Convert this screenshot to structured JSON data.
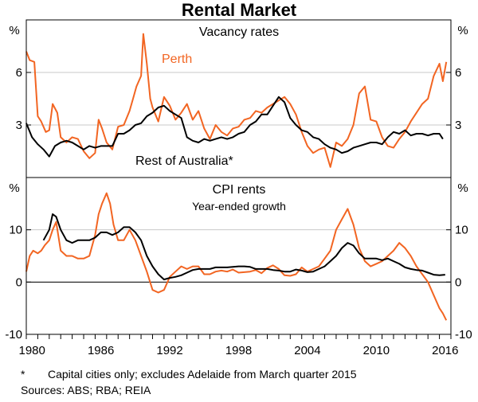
{
  "title": "Rental Market",
  "colors": {
    "perth": "#f26522",
    "rest": "#000000",
    "frame": "#000000",
    "grid": "#c8c8c8"
  },
  "x_axis": {
    "min": 1980,
    "max": 2017,
    "tick_labels": [
      "1980",
      "1986",
      "1992",
      "1998",
      "2004",
      "2010",
      "2016"
    ]
  },
  "footnote": {
    "marker": "*",
    "text": "Capital cities only; excludes Adelaide from March quarter 2015"
  },
  "sources": "Sources:   ABS; RBA; REIA",
  "chart_data": [
    {
      "type": "line",
      "title": "Vacancy rates",
      "ylabel": "%",
      "ylim": [
        0,
        9
      ],
      "y_ticks": [
        3,
        6
      ],
      "series": [
        {
          "name": "Perth",
          "label": "Perth",
          "color": "#f26522",
          "x": [
            1980,
            1980.3,
            1980.7,
            1981,
            1981.3,
            1981.7,
            1982,
            1982.3,
            1982.7,
            1983,
            1983.5,
            1984,
            1984.5,
            1985,
            1985.5,
            1986,
            1986.3,
            1986.6,
            1987,
            1987.5,
            1988,
            1988.5,
            1989,
            1989.3,
            1989.6,
            1990,
            1990.2,
            1990.5,
            1990.8,
            1991,
            1991.5,
            1992,
            1992.5,
            1993,
            1993.5,
            1994,
            1994.5,
            1995,
            1995.5,
            1996,
            1996.5,
            1997,
            1997.5,
            1998,
            1998.5,
            1999,
            1999.5,
            2000,
            2000.5,
            2001,
            2001.5,
            2002,
            2002.5,
            2003,
            2003.5,
            2004,
            2004.5,
            2005,
            2005.5,
            2006,
            2006.5,
            2007,
            2007.5,
            2008,
            2008.5,
            2009,
            2009.5,
            2010,
            2010.5,
            2011,
            2011.5,
            2012,
            2012.5,
            2013,
            2013.5,
            2014,
            2014.5,
            2015,
            2015.5,
            2016,
            2016.3,
            2016.6
          ],
          "y": [
            7.2,
            6.7,
            6.6,
            3.5,
            3.2,
            2.6,
            2.7,
            4.2,
            3.7,
            2.3,
            2.0,
            2.3,
            2.2,
            1.5,
            1.1,
            1.4,
            3.3,
            2.8,
            2.0,
            1.6,
            2.9,
            3.0,
            3.8,
            4.5,
            5.2,
            5.8,
            8.2,
            6.5,
            4.5,
            4.0,
            3.2,
            4.6,
            4.1,
            3.3,
            3.7,
            4.2,
            3.3,
            3.8,
            2.8,
            2.2,
            3.0,
            2.6,
            2.4,
            2.8,
            2.9,
            3.3,
            3.4,
            3.8,
            3.7,
            4.0,
            4.2,
            4.4,
            4.6,
            4.2,
            3.6,
            2.6,
            1.8,
            1.4,
            1.6,
            1.7,
            0.6,
            2.0,
            1.8,
            2.2,
            3.0,
            4.8,
            5.2,
            3.3,
            3.2,
            2.3,
            1.8,
            1.7,
            2.2,
            2.6,
            3.2,
            3.7,
            4.2,
            4.5,
            5.8,
            6.5,
            5.5,
            6.6
          ],
          "label_text": "Perth"
        },
        {
          "name": "Rest of Australia*",
          "label": "Rest of Australia*",
          "color": "#000000",
          "x": [
            1980,
            1980.5,
            1981,
            1981.5,
            1982,
            1982.5,
            1983,
            1983.5,
            1984,
            1984.5,
            1985,
            1985.5,
            1986,
            1986.5,
            1987,
            1987.5,
            1988,
            1988.5,
            1989,
            1989.5,
            1990,
            1990.5,
            1991,
            1991.5,
            1992,
            1992.5,
            1993,
            1993.5,
            1994,
            1994.5,
            1995,
            1995.5,
            1996,
            1996.5,
            1997,
            1997.5,
            1998,
            1998.5,
            1999,
            1999.5,
            2000,
            2000.5,
            2001,
            2001.5,
            2002,
            2002.5,
            2003,
            2003.5,
            2004,
            2004.5,
            2005,
            2005.5,
            2006,
            2006.5,
            2007,
            2007.5,
            2008,
            2008.5,
            2009,
            2009.5,
            2010,
            2010.5,
            2011,
            2011.5,
            2012,
            2012.5,
            2013,
            2013.5,
            2014,
            2014.5,
            2015,
            2015.5,
            2016,
            2016.3
          ],
          "y": [
            3.1,
            2.3,
            1.9,
            1.6,
            1.2,
            1.8,
            2.0,
            2.1,
            2.0,
            1.8,
            1.6,
            1.8,
            1.7,
            1.8,
            1.8,
            1.8,
            2.5,
            2.5,
            2.7,
            3.0,
            3.1,
            3.5,
            3.7,
            4.0,
            4.1,
            3.8,
            3.6,
            3.4,
            2.3,
            2.1,
            2.0,
            2.2,
            2.1,
            2.2,
            2.3,
            2.2,
            2.3,
            2.5,
            2.6,
            3.0,
            3.2,
            3.6,
            3.6,
            4.1,
            4.6,
            4.3,
            3.4,
            3.0,
            2.7,
            2.6,
            2.3,
            2.2,
            1.9,
            1.7,
            1.6,
            1.4,
            1.5,
            1.7,
            1.8,
            1.9,
            2.0,
            2.0,
            1.9,
            2.3,
            2.6,
            2.5,
            2.7,
            2.4,
            2.5,
            2.5,
            2.4,
            2.5,
            2.5,
            2.2
          ],
          "label_text": "Rest of Australia*"
        }
      ]
    },
    {
      "type": "line",
      "title": "CPI rents",
      "subtitle": "Year-ended growth",
      "ylabel": "%",
      "ylim": [
        -10,
        20
      ],
      "y_ticks": [
        -10,
        0,
        10
      ],
      "series": [
        {
          "name": "Perth",
          "color": "#f26522",
          "x": [
            1980,
            1980.3,
            1980.6,
            1981,
            1981.3,
            1981.6,
            1982,
            1982.3,
            1982.6,
            1983,
            1983.5,
            1984,
            1984.5,
            1985,
            1985.5,
            1986,
            1986.3,
            1986.6,
            1987,
            1987.3,
            1987.6,
            1988,
            1988.5,
            1989,
            1989.5,
            1990,
            1990.5,
            1991,
            1991.5,
            1992,
            1992.5,
            1993,
            1993.5,
            1994,
            1994.5,
            1995,
            1995.5,
            1996,
            1996.5,
            1997,
            1997.5,
            1998,
            1998.5,
            1999,
            1999.5,
            2000,
            2000.5,
            2001,
            2001.5,
            2002,
            2002.5,
            2003,
            2003.5,
            2004,
            2004.5,
            2005,
            2005.5,
            2006,
            2006.5,
            2007,
            2007.5,
            2008,
            2008.5,
            2009,
            2009.5,
            2010,
            2010.5,
            2011,
            2011.5,
            2012,
            2012.5,
            2013,
            2013.5,
            2014,
            2014.5,
            2015,
            2015.5,
            2016,
            2016.3,
            2016.6
          ],
          "y": [
            2,
            5,
            6,
            5.5,
            6,
            7,
            8,
            10,
            11.5,
            6,
            5,
            5,
            4.5,
            4.5,
            5,
            9,
            13,
            15,
            17,
            15,
            11,
            8,
            8,
            10,
            8,
            5,
            2,
            -1.5,
            -2,
            -1.5,
            1,
            2,
            3,
            2.5,
            3,
            3,
            1.5,
            1.5,
            2,
            2.2,
            2,
            2.4,
            1.8,
            1.9,
            2,
            2.3,
            1.7,
            2.7,
            3.2,
            2.5,
            1.3,
            1.2,
            1.5,
            2.8,
            2,
            2.5,
            3,
            4.5,
            6,
            10,
            12,
            14,
            11,
            6.5,
            4,
            3,
            3.5,
            4,
            5,
            6,
            7.5,
            6.5,
            5,
            3,
            1.5,
            0,
            -2.5,
            -5,
            -6,
            -7.3
          ]
        },
        {
          "name": "Rest of Australia*",
          "color": "#000000",
          "x": [
            1981.5,
            1982,
            1982.3,
            1982.6,
            1983,
            1983.5,
            1984,
            1984.5,
            1985,
            1985.5,
            1986,
            1986.5,
            1987,
            1987.5,
            1988,
            1988.5,
            1989,
            1989.5,
            1990,
            1990.5,
            1991,
            1991.5,
            1992,
            1992.5,
            1993,
            1993.5,
            1994,
            1994.5,
            1995,
            1995.5,
            1996,
            1996.5,
            1997,
            1997.5,
            1998,
            1998.5,
            1999,
            1999.5,
            2000,
            2000.5,
            2001,
            2001.5,
            2002,
            2002.5,
            2003,
            2003.5,
            2004,
            2004.5,
            2005,
            2005.5,
            2006,
            2006.5,
            2007,
            2007.5,
            2008,
            2008.5,
            2009,
            2009.5,
            2010,
            2010.5,
            2011,
            2011.5,
            2012,
            2012.5,
            2013,
            2013.5,
            2014,
            2014.5,
            2015,
            2015.5,
            2016,
            2016.5
          ],
          "y": [
            8,
            10,
            13,
            12.5,
            10,
            8,
            7.5,
            8,
            8,
            8,
            8.5,
            9.5,
            9.5,
            9,
            9.5,
            10.5,
            10.5,
            9.5,
            8,
            5,
            3,
            1.5,
            0.5,
            0.8,
            1,
            1.3,
            1.8,
            2.3,
            2.5,
            2.5,
            2.5,
            2.8,
            2.8,
            2.8,
            2.9,
            3,
            3,
            2.9,
            2.5,
            2.5,
            2.5,
            2.3,
            2.2,
            2,
            2,
            2.4,
            2.2,
            1.9,
            2,
            2.5,
            3,
            4,
            5,
            6.5,
            7.5,
            7,
            5.5,
            4.5,
            4.5,
            4.5,
            4.2,
            4.5,
            4,
            3.5,
            2.8,
            2.5,
            2.3,
            2.2,
            1.8,
            1.4,
            1.3,
            1.4
          ]
        }
      ]
    }
  ]
}
